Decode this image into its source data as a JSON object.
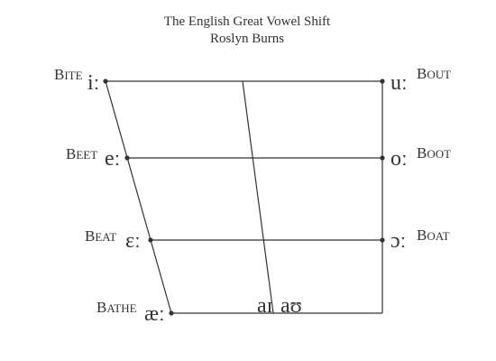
{
  "title": "The English Great Vowel Shift",
  "author": "Roslyn Burns",
  "vowels": {
    "bite": {
      "word": "Bite",
      "symbol": "iː"
    },
    "beet": {
      "word": "Beet",
      "symbol": "eː"
    },
    "beat": {
      "word": "Beat",
      "symbol": "ɛː"
    },
    "bathe": {
      "word": "Bathe",
      "symbol": "æː"
    },
    "bout": {
      "word": "Bout",
      "symbol": "uː"
    },
    "boot": {
      "word": "Boot",
      "symbol": "oː"
    },
    "boat": {
      "word": "Boat",
      "symbol": "ɔː"
    }
  },
  "diphthongs": {
    "ai": "aɪ",
    "au": "aʊ"
  },
  "colors": {
    "ink": "#333333",
    "background": "#ffffff"
  }
}
